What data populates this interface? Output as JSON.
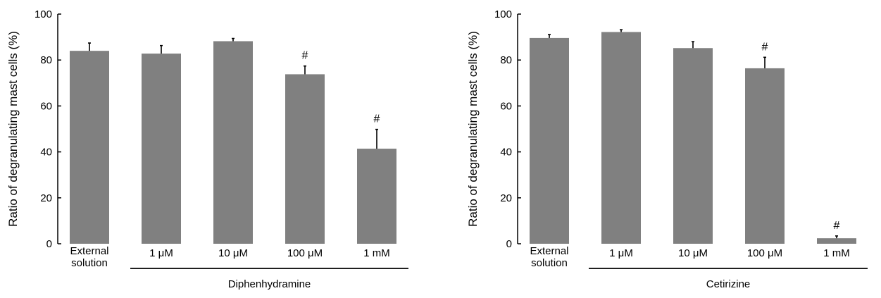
{
  "colors": {
    "bar": "#808080",
    "axis": "#000000"
  },
  "chart_data": [
    {
      "type": "bar",
      "ylabel": "Ratio of degranulating mast cells  (%)",
      "ylim": [
        0,
        100
      ],
      "yticks": [
        0,
        20,
        40,
        60,
        80,
        100
      ],
      "categories": [
        {
          "lines": [
            "External",
            "solution"
          ]
        },
        {
          "lines": [
            "1 μM"
          ]
        },
        {
          "lines": [
            "10 μM"
          ]
        },
        {
          "lines": [
            "100 μM"
          ]
        },
        {
          "lines": [
            "1 mM"
          ]
        }
      ],
      "values": [
        84,
        82.8,
        88.2,
        73.8,
        41.4
      ],
      "errors": [
        3.4,
        3.5,
        1.2,
        3.6,
        8.4
      ],
      "significance": [
        "",
        "",
        "",
        "#",
        "#"
      ],
      "group_label": "Diphenhydramine"
    },
    {
      "type": "bar",
      "ylabel": "Ratio of degranulating mast cells  (%)",
      "ylim": [
        0,
        100
      ],
      "yticks": [
        0,
        20,
        40,
        60,
        80,
        100
      ],
      "categories": [
        {
          "lines": [
            "External",
            "solution"
          ]
        },
        {
          "lines": [
            "1 μM"
          ]
        },
        {
          "lines": [
            "10 μM"
          ]
        },
        {
          "lines": [
            "100 μM"
          ]
        },
        {
          "lines": [
            "1 mM"
          ]
        }
      ],
      "values": [
        89.6,
        92.2,
        85.2,
        76.4,
        2.4
      ],
      "errors": [
        1.5,
        1.0,
        2.8,
        4.8,
        1.0
      ],
      "significance": [
        "",
        "",
        "",
        "#",
        "#"
      ],
      "group_label": "Cetirizine"
    }
  ]
}
